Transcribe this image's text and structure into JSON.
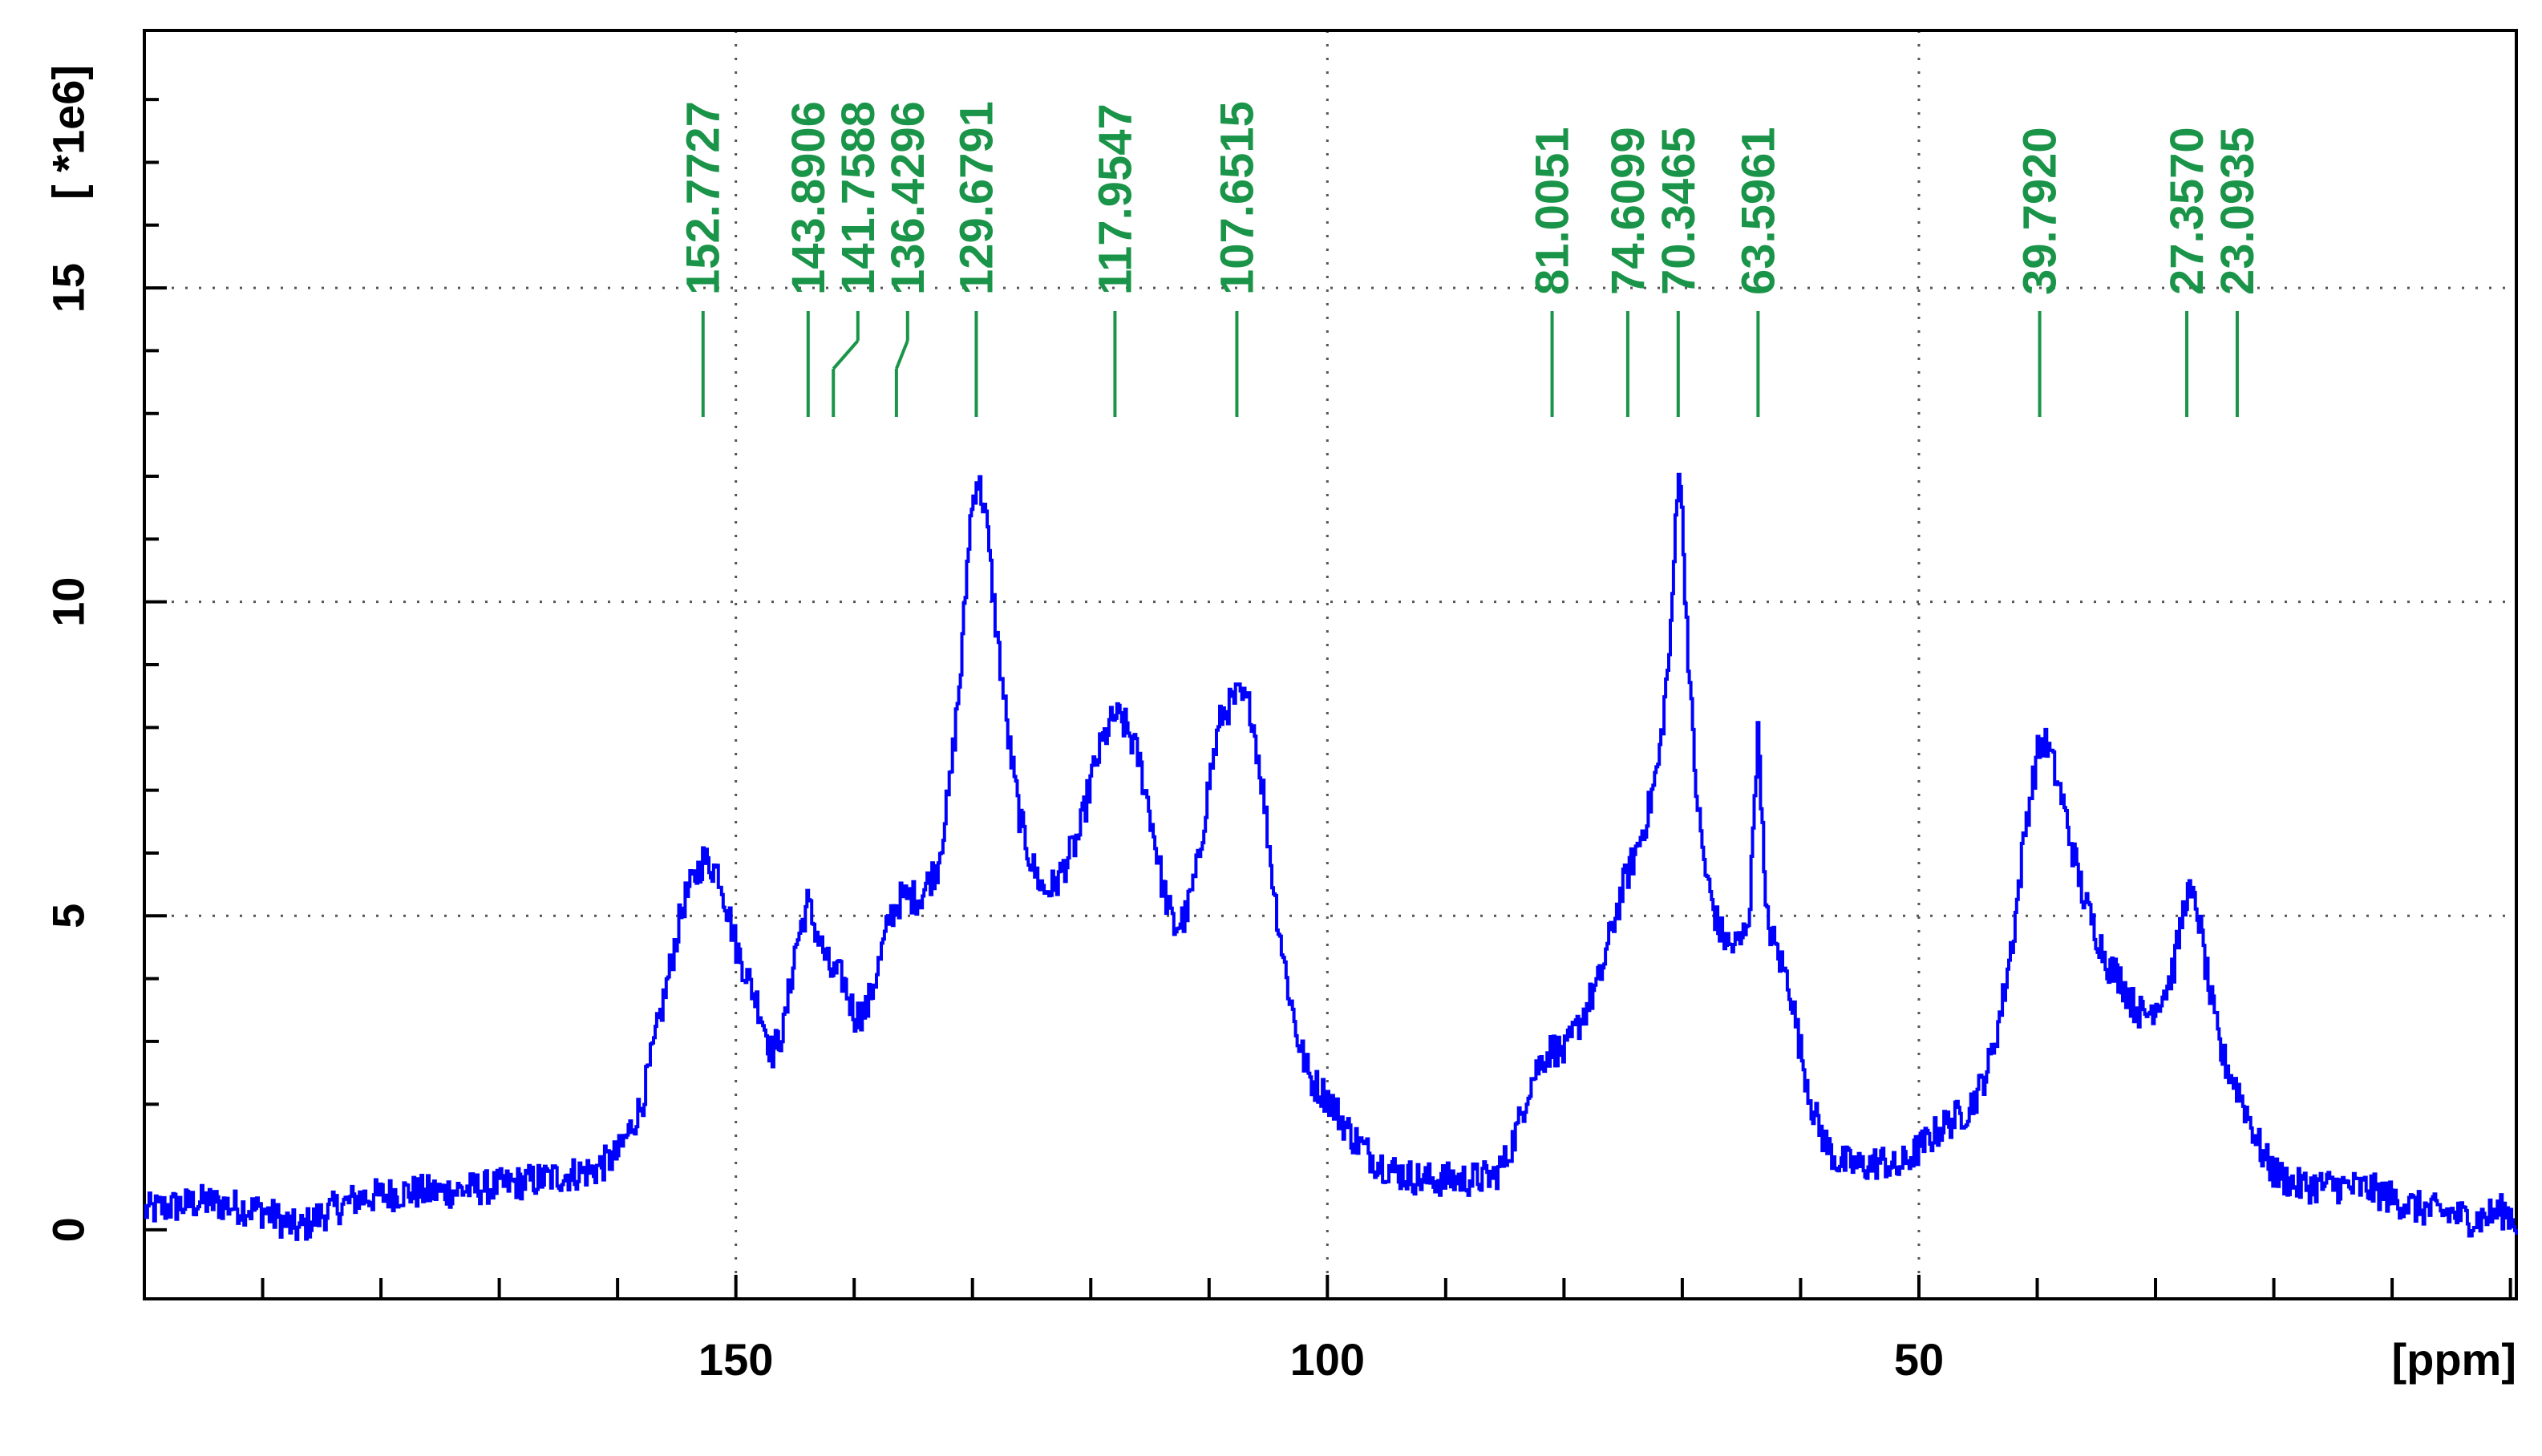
{
  "chart_data": {
    "type": "line",
    "title": "",
    "xlabel": "[ppm]",
    "ylabel": "[ *1e6]",
    "xlim": [
      200,
      -0.5
    ],
    "ylim": [
      -1.1,
      19.1
    ],
    "x_reversed": true,
    "grid": true,
    "colors": {
      "spectrum": "#0000ff",
      "peaks": "#1a9448",
      "axes": "#000000",
      "grid": "#555555"
    },
    "x_ticks_major": [
      150,
      100,
      50
    ],
    "x_tick_labels": [
      "150",
      "100",
      "50"
    ],
    "x_ticks_minor": [
      190,
      180,
      170,
      160,
      140,
      130,
      120,
      110,
      90,
      80,
      70,
      60,
      40,
      30,
      20,
      10,
      0
    ],
    "y_ticks": [
      0,
      5,
      10,
      15
    ],
    "y_tick_labels": [
      "0",
      "5",
      "10",
      "15"
    ],
    "y_ticks_minor": [
      2,
      3,
      4,
      6,
      7,
      8,
      9,
      11,
      12,
      13,
      14,
      16,
      17,
      18
    ],
    "peak_labels": [
      {
        "text": "152.7727",
        "ppm": 152.7727
      },
      {
        "text": "143.8906",
        "ppm": 143.8906
      },
      {
        "text": "141.7588",
        "ppm": 141.7588
      },
      {
        "text": "136.4296",
        "ppm": 136.4296
      },
      {
        "text": "129.6791",
        "ppm": 129.6791
      },
      {
        "text": "117.9547",
        "ppm": 117.9547
      },
      {
        "text": "107.6515",
        "ppm": 107.6515
      },
      {
        "text": "81.0051",
        "ppm": 81.0051
      },
      {
        "text": "74.6099",
        "ppm": 74.6099
      },
      {
        "text": "70.3465",
        "ppm": 70.3465
      },
      {
        "text": "63.5961",
        "ppm": 63.5961
      },
      {
        "text": "39.7920",
        "ppm": 39.792
      },
      {
        "text": "27.3570",
        "ppm": 27.357
      },
      {
        "text": "23.0935",
        "ppm": 23.0935
      }
    ],
    "series": [
      {
        "points": [
          [
            200,
            0.3
          ],
          [
            195,
            0.45
          ],
          [
            190,
            0.3
          ],
          [
            187,
            0.0
          ],
          [
            185,
            0.25
          ],
          [
            182,
            0.5
          ],
          [
            178,
            0.6
          ],
          [
            175,
            0.6
          ],
          [
            170,
            0.7
          ],
          [
            165,
            0.85
          ],
          [
            162,
            0.95
          ],
          [
            160,
            1.2
          ],
          [
            158,
            2.0
          ],
          [
            156,
            3.8
          ],
          [
            154.5,
            5.2
          ],
          [
            152.8,
            5.9
          ],
          [
            151.5,
            5.7
          ],
          [
            150,
            4.5
          ],
          [
            148,
            3.5
          ],
          [
            147,
            2.8
          ],
          [
            146,
            3.2
          ],
          [
            145,
            4.5
          ],
          [
            144,
            5.2
          ],
          [
            143,
            4.6
          ],
          [
            142,
            4.1
          ],
          [
            141,
            4.0
          ],
          [
            140,
            3.4
          ],
          [
            139,
            3.5
          ],
          [
            138,
            4.2
          ],
          [
            137,
            5.0
          ],
          [
            136,
            5.3
          ],
          [
            134.5,
            5.3
          ],
          [
            133,
            5.8
          ],
          [
            132,
            7.0
          ],
          [
            131,
            9.0
          ],
          [
            130.3,
            11.2
          ],
          [
            129.7,
            12.0
          ],
          [
            129,
            11.5
          ],
          [
            128,
            9.5
          ],
          [
            127,
            7.8
          ],
          [
            126,
            6.5
          ],
          [
            125,
            5.8
          ],
          [
            124,
            5.4
          ],
          [
            123,
            5.5
          ],
          [
            122,
            5.9
          ],
          [
            121,
            6.3
          ],
          [
            120,
            7.2
          ],
          [
            119,
            7.8
          ],
          [
            118,
            8.2
          ],
          [
            117,
            8.0
          ],
          [
            116,
            7.5
          ],
          [
            115,
            6.6
          ],
          [
            114,
            5.5
          ],
          [
            113,
            4.8
          ],
          [
            112,
            5.0
          ],
          [
            111,
            5.8
          ],
          [
            110,
            7.2
          ],
          [
            109,
            8.2
          ],
          [
            107.6,
            8.5
          ],
          [
            106.5,
            8.3
          ],
          [
            105.5,
            7.0
          ],
          [
            104.5,
            5.3
          ],
          [
            103.5,
            4.0
          ],
          [
            102.5,
            3.0
          ],
          [
            101.5,
            2.4
          ],
          [
            100,
            2.1
          ],
          [
            98,
            1.5
          ],
          [
            96,
            1.1
          ],
          [
            94,
            0.9
          ],
          [
            92,
            0.8
          ],
          [
            90,
            0.8
          ],
          [
            88,
            0.8
          ],
          [
            86,
            0.85
          ],
          [
            85,
            1.1
          ],
          [
            84,
            1.6
          ],
          [
            83,
            2.3
          ],
          [
            82,
            2.7
          ],
          [
            81,
            2.9
          ],
          [
            80,
            2.8
          ],
          [
            79,
            3.2
          ],
          [
            78,
            3.6
          ],
          [
            77,
            4.0
          ],
          [
            76,
            4.8
          ],
          [
            75,
            5.5
          ],
          [
            74,
            6.0
          ],
          [
            73,
            6.6
          ],
          [
            72,
            7.5
          ],
          [
            71,
            9.5
          ],
          [
            70.5,
            11.8
          ],
          [
            70.3,
            12.3
          ],
          [
            70,
            11.0
          ],
          [
            69.5,
            9.0
          ],
          [
            69,
            7.3
          ],
          [
            68.5,
            6.3
          ],
          [
            68,
            5.6
          ],
          [
            67,
            4.8
          ],
          [
            66,
            4.5
          ],
          [
            65,
            4.6
          ],
          [
            64.3,
            5.2
          ],
          [
            63.9,
            7.2
          ],
          [
            63.6,
            8.0
          ],
          [
            63.3,
            6.5
          ],
          [
            63,
            5.0
          ],
          [
            62,
            4.4
          ],
          [
            61,
            3.9
          ],
          [
            60,
            2.8
          ],
          [
            59,
            1.9
          ],
          [
            58,
            1.4
          ],
          [
            57,
            1.1
          ],
          [
            55,
            1.0
          ],
          [
            53,
            1.1
          ],
          [
            52,
            0.95
          ],
          [
            50,
            1.3
          ],
          [
            48,
            1.65
          ],
          [
            46,
            1.9
          ],
          [
            45,
            2.2
          ],
          [
            44,
            2.7
          ],
          [
            43,
            3.6
          ],
          [
            42,
            4.8
          ],
          [
            41,
            6.5
          ],
          [
            40,
            7.6
          ],
          [
            39.5,
            7.8
          ],
          [
            39,
            7.6
          ],
          [
            38,
            6.9
          ],
          [
            37,
            6.0
          ],
          [
            36,
            5.2
          ],
          [
            35,
            4.7
          ],
          [
            34,
            4.2
          ],
          [
            33,
            4.0
          ],
          [
            32,
            3.6
          ],
          [
            31,
            3.4
          ],
          [
            30,
            3.6
          ],
          [
            29,
            3.9
          ],
          [
            28.5,
            4.2
          ],
          [
            27.4,
            5.4
          ],
          [
            26.5,
            5.1
          ],
          [
            25.5,
            3.8
          ],
          [
            24.5,
            2.8
          ],
          [
            23,
            2.2
          ],
          [
            22,
            1.7
          ],
          [
            21,
            1.2
          ],
          [
            20,
            0.9
          ],
          [
            18,
            0.7
          ],
          [
            15,
            0.7
          ],
          [
            12,
            0.65
          ],
          [
            10,
            0.5
          ],
          [
            8,
            0.35
          ],
          [
            5,
            0.25
          ],
          [
            3,
            0.15
          ],
          [
            1,
            0.3
          ],
          [
            0,
            0.25
          ],
          [
            -0.5,
            0.1
          ]
        ]
      }
    ]
  }
}
